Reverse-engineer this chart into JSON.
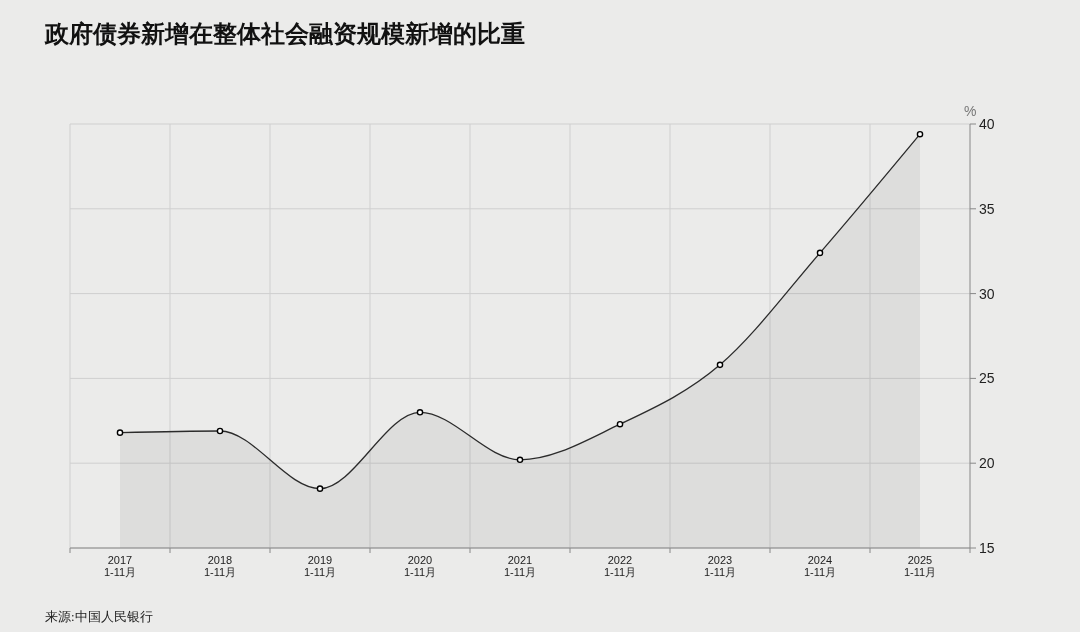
{
  "chart_data": {
    "type": "area",
    "title": "政府债券新增在整体社会融资规模新增的比重",
    "ylabel": "%",
    "categories": [
      "2017\n1-11月",
      "2018\n1-11月",
      "2019\n1-11月",
      "2020\n1-11月",
      "2021\n1-11月",
      "2022\n1-11月",
      "2023\n1-11月",
      "2024\n1-11月",
      "2025\n1-11月"
    ],
    "series": [
      {
        "color": "#2b2b2b",
        "values": [
          21.8,
          21.9,
          18.5,
          23.0,
          20.2,
          22.3,
          25.8,
          32.4,
          39.4
        ]
      }
    ],
    "ylim": [
      15,
      40
    ],
    "yticks": [
      15,
      20,
      25,
      30,
      35,
      40
    ],
    "grid": true,
    "marker": "circle",
    "annotations": [
      "来源:中国人民银行"
    ]
  }
}
